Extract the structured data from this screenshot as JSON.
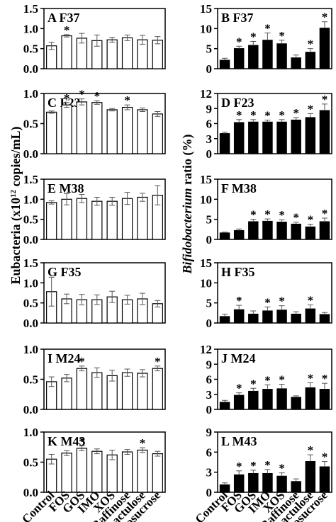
{
  "chart_data": {
    "type": "bar",
    "categories": [
      "Control",
      "FOS",
      "GOS",
      "IMO",
      "XOS",
      "Raffinose",
      "Lactulose",
      "Lactosucrose"
    ],
    "left_ylabel": {
      "prefix": "Eubacteria (x10",
      "sup": "12",
      "suffix": " copies/mL)"
    },
    "right_ylabel": {
      "italic": "Bifidobacterium",
      "rest": " ratio (%)"
    },
    "panels": [
      {
        "id": "A",
        "subject": "F37",
        "column": "left",
        "ylim": [
          0,
          1.5
        ],
        "yticks": [
          "0.0",
          "0.5",
          "1.0",
          "1.5"
        ],
        "values": [
          0.57,
          0.82,
          0.76,
          0.7,
          0.72,
          0.77,
          0.72,
          0.71
        ],
        "errors": [
          0.09,
          0.03,
          0.12,
          0.14,
          0.06,
          0.07,
          0.11,
          0.09
        ],
        "significant": [
          false,
          true,
          false,
          false,
          false,
          false,
          false,
          false
        ]
      },
      {
        "id": "B",
        "subject": "F37",
        "column": "right",
        "ylim": [
          0,
          15
        ],
        "yticks": [
          "0",
          "5",
          "10",
          "15"
        ],
        "values": [
          2.1,
          5.0,
          5.8,
          7.1,
          6.2,
          2.7,
          4.1,
          10.1
        ],
        "errors": [
          0.5,
          0.6,
          1.0,
          1.8,
          0.9,
          0.7,
          0.9,
          1.6
        ],
        "significant": [
          false,
          true,
          true,
          true,
          true,
          false,
          true,
          true
        ]
      },
      {
        "id": "C",
        "subject": "F23",
        "column": "left",
        "ylim": [
          0,
          1.0
        ],
        "yticks": [
          "0.0",
          "0.5",
          "1.0"
        ],
        "values": [
          0.69,
          0.81,
          0.86,
          0.85,
          0.73,
          0.77,
          0.73,
          0.66
        ],
        "errors": [
          0.02,
          0.04,
          0.05,
          0.03,
          0.02,
          0.04,
          0.03,
          0.04
        ],
        "significant": [
          false,
          true,
          true,
          true,
          false,
          true,
          false,
          false
        ]
      },
      {
        "id": "D",
        "subject": "F23",
        "column": "right",
        "ylim": [
          0,
          12
        ],
        "yticks": [
          "0",
          "3",
          "6",
          "9",
          "12"
        ],
        "values": [
          4.0,
          6.2,
          6.3,
          6.3,
          6.3,
          6.7,
          7.2,
          8.6
        ],
        "errors": [
          0.3,
          0.6,
          0.5,
          0.4,
          0.5,
          0.5,
          0.8,
          1.3
        ],
        "significant": [
          false,
          true,
          true,
          true,
          true,
          true,
          true,
          true
        ]
      },
      {
        "id": "E",
        "subject": "M38",
        "column": "left",
        "ylim": [
          0,
          1.5
        ],
        "yticks": [
          "0.0",
          "0.5",
          "1.0",
          "1.5"
        ],
        "values": [
          0.92,
          1.0,
          1.02,
          0.95,
          0.95,
          1.02,
          1.05,
          1.1
        ],
        "errors": [
          0.04,
          0.14,
          0.1,
          0.1,
          0.1,
          0.15,
          0.1,
          0.24
        ],
        "significant": [
          false,
          false,
          false,
          false,
          false,
          false,
          false,
          false
        ]
      },
      {
        "id": "F",
        "subject": "M38",
        "column": "right",
        "ylim": [
          0,
          15
        ],
        "yticks": [
          "0",
          "5",
          "10",
          "15"
        ],
        "values": [
          1.6,
          2.2,
          4.4,
          4.5,
          4.3,
          3.8,
          3.1,
          4.4
        ],
        "errors": [
          0.2,
          0.4,
          0.6,
          0.6,
          0.6,
          0.5,
          0.7,
          0.9
        ],
        "significant": [
          false,
          false,
          true,
          true,
          true,
          true,
          true,
          true
        ]
      },
      {
        "id": "G",
        "subject": "F35",
        "column": "left",
        "ylim": [
          0,
          1.5
        ],
        "yticks": [
          "0.0",
          "0.5",
          "1.0",
          "1.5"
        ],
        "values": [
          0.78,
          0.6,
          0.58,
          0.58,
          0.65,
          0.58,
          0.6,
          0.48
        ],
        "errors": [
          0.36,
          0.12,
          0.13,
          0.12,
          0.14,
          0.11,
          0.14,
          0.08
        ],
        "significant": [
          false,
          false,
          false,
          false,
          false,
          false,
          false,
          false
        ]
      },
      {
        "id": "H",
        "subject": "F35",
        "column": "right",
        "ylim": [
          0,
          15
        ],
        "yticks": [
          "0",
          "5",
          "10",
          "15"
        ],
        "values": [
          1.6,
          3.3,
          2.2,
          3.0,
          3.2,
          2.2,
          3.5,
          2.1
        ],
        "errors": [
          0.6,
          1.1,
          0.8,
          1.0,
          1.1,
          0.6,
          1.0,
          0.5
        ],
        "significant": [
          false,
          true,
          false,
          true,
          true,
          false,
          true,
          false
        ]
      },
      {
        "id": "I",
        "subject": "M24",
        "column": "left",
        "ylim": [
          0,
          1.0
        ],
        "yticks": [
          "0.0",
          "0.5",
          "1.0"
        ],
        "values": [
          0.46,
          0.52,
          0.68,
          0.61,
          0.56,
          0.61,
          0.6,
          0.68
        ],
        "errors": [
          0.08,
          0.06,
          0.04,
          0.08,
          0.09,
          0.06,
          0.06,
          0.04
        ],
        "significant": [
          false,
          false,
          true,
          false,
          false,
          false,
          false,
          true
        ]
      },
      {
        "id": "J",
        "subject": "M24",
        "column": "right",
        "ylim": [
          0,
          12
        ],
        "yticks": [
          "0",
          "3",
          "6",
          "9",
          "12"
        ],
        "values": [
          1.4,
          2.8,
          3.6,
          4.0,
          4.1,
          2.4,
          4.3,
          4.0
        ],
        "errors": [
          0.4,
          0.5,
          0.6,
          0.9,
          0.9,
          0.3,
          1.0,
          1.2
        ],
        "significant": [
          false,
          true,
          true,
          true,
          true,
          false,
          true,
          true
        ]
      },
      {
        "id": "K",
        "subject": "M43",
        "column": "left",
        "ylim": [
          0,
          1.0
        ],
        "yticks": [
          "0.0",
          "0.5",
          "1.0"
        ],
        "values": [
          0.55,
          0.65,
          0.73,
          0.68,
          0.62,
          0.67,
          0.7,
          0.64
        ],
        "errors": [
          0.08,
          0.04,
          0.04,
          0.04,
          0.08,
          0.04,
          0.04,
          0.04
        ],
        "significant": [
          false,
          false,
          true,
          false,
          false,
          false,
          true,
          false
        ]
      },
      {
        "id": "L",
        "subject": "M43",
        "column": "right",
        "ylim": [
          0,
          9
        ],
        "yticks": [
          "0",
          "3",
          "6",
          "9"
        ],
        "values": [
          1.1,
          2.6,
          2.8,
          2.8,
          2.4,
          1.6,
          4.6,
          3.8
        ],
        "errors": [
          0.3,
          0.6,
          0.5,
          0.6,
          0.5,
          0.4,
          1.0,
          0.8
        ],
        "significant": [
          false,
          true,
          true,
          true,
          true,
          false,
          true,
          true
        ]
      }
    ]
  }
}
